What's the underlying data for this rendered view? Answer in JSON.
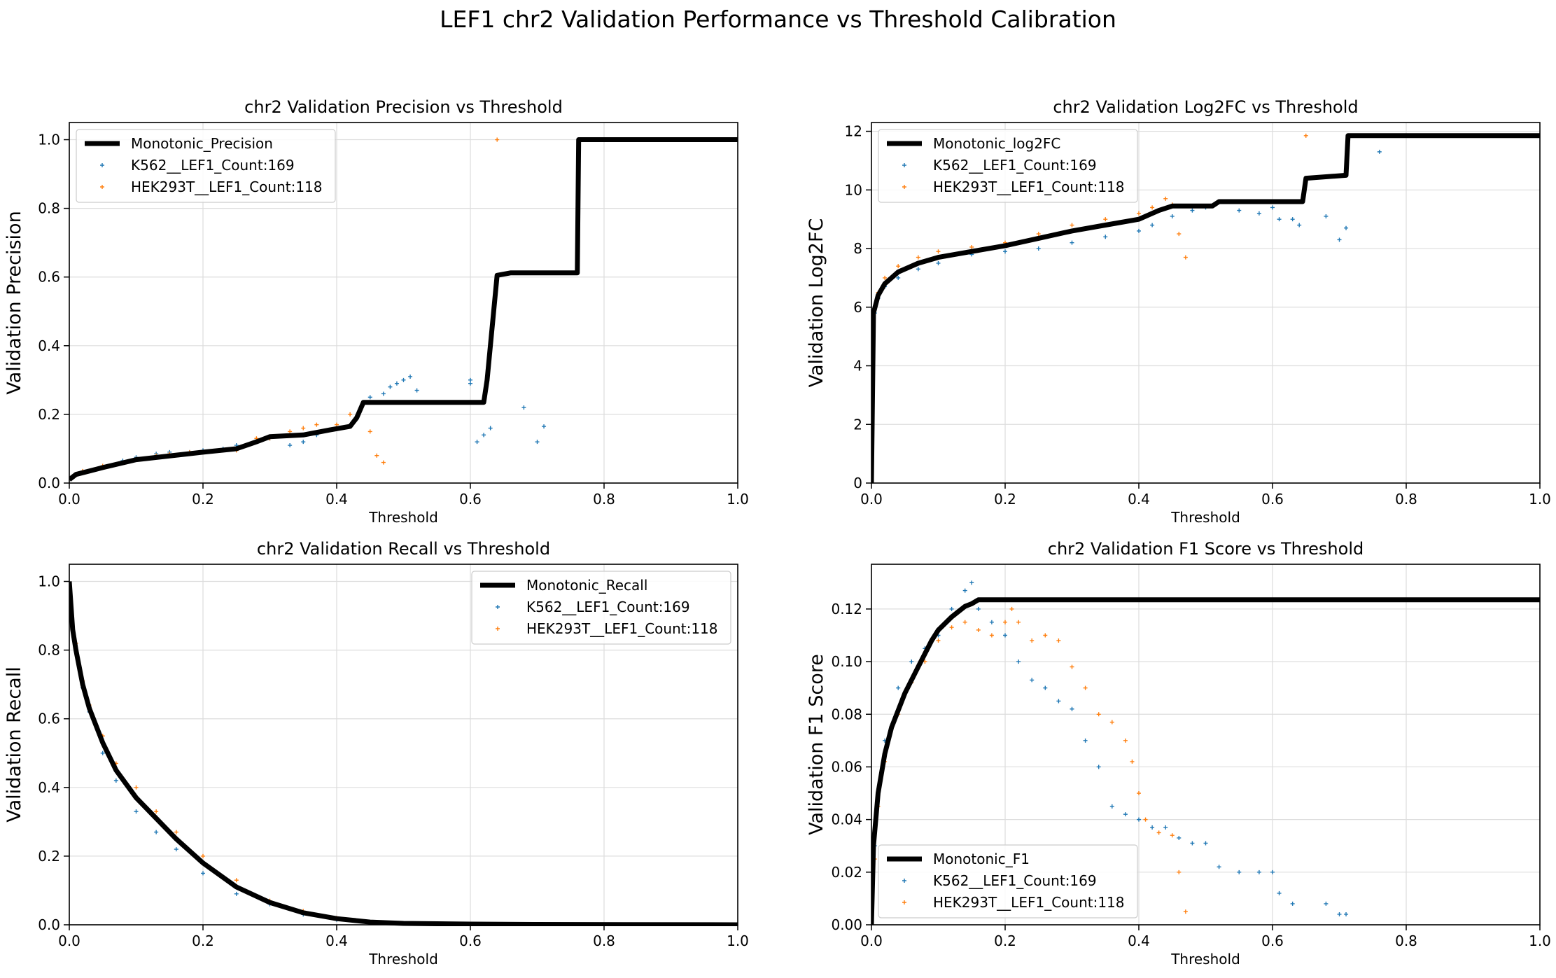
{
  "suptitle": "LEF1 chr2 Validation Performance vs Threshold Calibration",
  "colors": {
    "monotonic": "#000000",
    "k562": "#1f77b4",
    "hek": "#ff7f0e",
    "grid": "#dddddd"
  },
  "chart_data": [
    {
      "type": "line",
      "title": "chr2 Validation Precision vs Threshold",
      "xlabel": "Threshold",
      "ylabel": "Validation Precision",
      "xlim": [
        0,
        1
      ],
      "ylim": [
        0,
        1.05
      ],
      "xticks": [
        0,
        0.2,
        0.4,
        0.6,
        0.8,
        1.0
      ],
      "xtick_labels": [
        "0.0",
        "0.2",
        "0.4",
        "0.6",
        "0.8",
        "1.0"
      ],
      "yticks": [
        0,
        0.2,
        0.4,
        0.6,
        0.8,
        1.0
      ],
      "ytick_labels": [
        "0.0",
        "0.2",
        "0.4",
        "0.6",
        "0.8",
        "1.0"
      ],
      "grid": true,
      "legend": "top-left",
      "series": [
        {
          "name": "Monotonic_Precision",
          "style": "line",
          "x": [
            0,
            0.01,
            0.05,
            0.1,
            0.2,
            0.25,
            0.28,
            0.3,
            0.35,
            0.39,
            0.42,
            0.43,
            0.44,
            0.6,
            0.62,
            0.625,
            0.64,
            0.66,
            0.76,
            0.762,
            1.0
          ],
          "y": [
            0.01,
            0.025,
            0.045,
            0.068,
            0.09,
            0.1,
            0.12,
            0.135,
            0.14,
            0.155,
            0.165,
            0.19,
            0.235,
            0.235,
            0.235,
            0.3,
            0.605,
            0.612,
            0.612,
            1.0,
            1.0
          ]
        },
        {
          "name": "K562__LEF1_Count:169",
          "style": "scatter",
          "x": [
            0.02,
            0.05,
            0.08,
            0.1,
            0.13,
            0.15,
            0.18,
            0.2,
            0.23,
            0.25,
            0.28,
            0.3,
            0.33,
            0.35,
            0.37,
            0.4,
            0.45,
            0.47,
            0.48,
            0.49,
            0.5,
            0.51,
            0.52,
            0.6,
            0.6,
            0.61,
            0.62,
            0.63,
            0.68,
            0.7,
            0.71
          ],
          "y": [
            0.03,
            0.05,
            0.065,
            0.075,
            0.085,
            0.09,
            0.09,
            0.095,
            0.1,
            0.11,
            0.12,
            0.13,
            0.11,
            0.12,
            0.14,
            0.16,
            0.25,
            0.26,
            0.28,
            0.29,
            0.3,
            0.31,
            0.27,
            0.29,
            0.3,
            0.12,
            0.14,
            0.16,
            0.22,
            0.12,
            0.165
          ]
        },
        {
          "name": "HEK293T__LEF1_Count:118",
          "style": "scatter",
          "x": [
            0.02,
            0.05,
            0.08,
            0.1,
            0.13,
            0.15,
            0.18,
            0.2,
            0.23,
            0.25,
            0.28,
            0.3,
            0.33,
            0.35,
            0.37,
            0.4,
            0.42,
            0.45,
            0.46,
            0.47,
            0.64
          ],
          "y": [
            0.035,
            0.05,
            0.06,
            0.07,
            0.08,
            0.085,
            0.09,
            0.09,
            0.095,
            0.095,
            0.13,
            0.13,
            0.15,
            0.16,
            0.17,
            0.17,
            0.2,
            0.15,
            0.08,
            0.06,
            1.0
          ]
        }
      ]
    },
    {
      "type": "line",
      "title": "chr2 Validation Log2FC vs Threshold",
      "xlabel": "Threshold",
      "ylabel": "Validation Log2FC",
      "xlim": [
        0,
        1
      ],
      "ylim": [
        0,
        12.3
      ],
      "xticks": [
        0,
        0.2,
        0.4,
        0.6,
        0.8,
        1.0
      ],
      "xtick_labels": [
        "0.0",
        "0.2",
        "0.4",
        "0.6",
        "0.8",
        "1.0"
      ],
      "yticks": [
        0,
        2,
        4,
        6,
        8,
        10,
        12
      ],
      "ytick_labels": [
        "0",
        "2",
        "4",
        "6",
        "8",
        "10",
        "12"
      ],
      "grid": true,
      "legend": "top-left",
      "series": [
        {
          "name": "Monotonic_log2FC",
          "style": "line",
          "x": [
            0,
            0.003,
            0.01,
            0.02,
            0.04,
            0.07,
            0.1,
            0.15,
            0.2,
            0.25,
            0.3,
            0.35,
            0.4,
            0.43,
            0.45,
            0.51,
            0.52,
            0.645,
            0.65,
            0.71,
            0.713,
            1.0
          ],
          "y": [
            0,
            5.8,
            6.4,
            6.8,
            7.2,
            7.5,
            7.7,
            7.9,
            8.1,
            8.35,
            8.6,
            8.8,
            9.0,
            9.3,
            9.45,
            9.45,
            9.6,
            9.6,
            10.4,
            10.5,
            11.85,
            11.85
          ]
        },
        {
          "name": "K562__LEF1_Count:169",
          "style": "scatter",
          "x": [
            0.005,
            0.01,
            0.02,
            0.04,
            0.07,
            0.1,
            0.15,
            0.2,
            0.25,
            0.3,
            0.35,
            0.4,
            0.42,
            0.45,
            0.48,
            0.5,
            0.55,
            0.58,
            0.6,
            0.61,
            0.63,
            0.64,
            0.68,
            0.7,
            0.71,
            0.76
          ],
          "y": [
            5.8,
            6.3,
            6.7,
            7.0,
            7.3,
            7.5,
            7.8,
            7.9,
            8.0,
            8.2,
            8.4,
            8.6,
            8.8,
            9.1,
            9.3,
            9.4,
            9.3,
            9.2,
            9.4,
            9.0,
            9.0,
            8.8,
            9.1,
            8.3,
            8.7,
            11.3
          ]
        },
        {
          "name": "HEK293T__LEF1_Count:118",
          "style": "scatter",
          "x": [
            0.005,
            0.01,
            0.02,
            0.04,
            0.07,
            0.1,
            0.15,
            0.2,
            0.25,
            0.3,
            0.35,
            0.4,
            0.42,
            0.44,
            0.45,
            0.46,
            0.47,
            0.65
          ],
          "y": [
            6.0,
            6.5,
            7.0,
            7.4,
            7.7,
            7.9,
            8.05,
            8.2,
            8.5,
            8.8,
            9.0,
            9.2,
            9.4,
            9.7,
            9.5,
            8.5,
            7.7,
            11.85
          ]
        }
      ]
    },
    {
      "type": "line",
      "title": "chr2 Validation Recall vs Threshold",
      "xlabel": "Threshold",
      "ylabel": "Validation Recall",
      "xlim": [
        0,
        1
      ],
      "ylim": [
        0,
        1.05
      ],
      "xticks": [
        0,
        0.2,
        0.4,
        0.6,
        0.8,
        1.0
      ],
      "xtick_labels": [
        "0.0",
        "0.2",
        "0.4",
        "0.6",
        "0.8",
        "1.0"
      ],
      "yticks": [
        0,
        0.2,
        0.4,
        0.6,
        0.8,
        1.0
      ],
      "ytick_labels": [
        "0.0",
        "0.2",
        "0.4",
        "0.6",
        "0.8",
        "1.0"
      ],
      "grid": true,
      "legend": "top-right",
      "series": [
        {
          "name": "Monotonic_Recall",
          "style": "line",
          "x": [
            0,
            0.005,
            0.01,
            0.02,
            0.03,
            0.05,
            0.07,
            0.1,
            0.13,
            0.16,
            0.2,
            0.25,
            0.3,
            0.35,
            0.4,
            0.45,
            0.5,
            0.6,
            0.7,
            1.0
          ],
          "y": [
            1.0,
            0.86,
            0.8,
            0.7,
            0.63,
            0.53,
            0.45,
            0.37,
            0.31,
            0.25,
            0.18,
            0.11,
            0.065,
            0.035,
            0.018,
            0.008,
            0.004,
            0.002,
            0.001,
            0.0
          ]
        },
        {
          "name": "K562__LEF1_Count:169",
          "style": "scatter",
          "x": [
            0.01,
            0.02,
            0.03,
            0.05,
            0.07,
            0.1,
            0.13,
            0.16,
            0.2,
            0.25,
            0.3,
            0.35,
            0.4,
            0.45,
            0.5,
            0.6
          ],
          "y": [
            0.8,
            0.69,
            0.62,
            0.5,
            0.42,
            0.33,
            0.27,
            0.22,
            0.15,
            0.09,
            0.06,
            0.03,
            0.015,
            0.008,
            0.004,
            0.002
          ]
        },
        {
          "name": "HEK293T__LEF1_Count:118",
          "style": "scatter",
          "x": [
            0.01,
            0.02,
            0.03,
            0.05,
            0.07,
            0.1,
            0.13,
            0.16,
            0.2,
            0.25,
            0.3,
            0.35,
            0.4,
            0.45,
            0.5
          ],
          "y": [
            0.82,
            0.71,
            0.64,
            0.55,
            0.47,
            0.4,
            0.33,
            0.27,
            0.2,
            0.13,
            0.07,
            0.04,
            0.02,
            0.008,
            0.004
          ]
        }
      ]
    },
    {
      "type": "line",
      "title": "chr2 Validation F1 Score vs Threshold",
      "xlabel": "Threshold",
      "ylabel": "Validation F1 Score",
      "xlim": [
        0,
        1
      ],
      "ylim": [
        0,
        0.137
      ],
      "xticks": [
        0,
        0.2,
        0.4,
        0.6,
        0.8,
        1.0
      ],
      "xtick_labels": [
        "0.0",
        "0.2",
        "0.4",
        "0.6",
        "0.8",
        "1.0"
      ],
      "yticks": [
        0,
        0.02,
        0.04,
        0.06,
        0.08,
        0.1,
        0.12
      ],
      "ytick_labels": [
        "0.00",
        "0.02",
        "0.04",
        "0.06",
        "0.08",
        "0.10",
        "0.12"
      ],
      "grid": true,
      "legend": "bottom-left",
      "series": [
        {
          "name": "Monotonic_F1",
          "style": "line",
          "x": [
            0,
            0.003,
            0.01,
            0.02,
            0.03,
            0.05,
            0.07,
            0.09,
            0.1,
            0.12,
            0.14,
            0.15,
            0.16,
            1.0
          ],
          "y": [
            0.0,
            0.03,
            0.05,
            0.065,
            0.075,
            0.088,
            0.098,
            0.108,
            0.112,
            0.117,
            0.121,
            0.122,
            0.1235,
            0.1235
          ]
        },
        {
          "name": "K562__LEF1_Count:169",
          "style": "scatter",
          "x": [
            0.005,
            0.01,
            0.02,
            0.04,
            0.06,
            0.08,
            0.1,
            0.12,
            0.14,
            0.15,
            0.16,
            0.18,
            0.2,
            0.22,
            0.24,
            0.26,
            0.28,
            0.3,
            0.32,
            0.34,
            0.36,
            0.38,
            0.4,
            0.42,
            0.44,
            0.46,
            0.48,
            0.5,
            0.52,
            0.55,
            0.58,
            0.6,
            0.61,
            0.63,
            0.68,
            0.7,
            0.71
          ],
          "y": [
            0.03,
            0.05,
            0.07,
            0.09,
            0.1,
            0.105,
            0.11,
            0.12,
            0.127,
            0.13,
            0.12,
            0.115,
            0.11,
            0.1,
            0.093,
            0.09,
            0.085,
            0.082,
            0.07,
            0.06,
            0.045,
            0.042,
            0.04,
            0.037,
            0.037,
            0.033,
            0.031,
            0.031,
            0.022,
            0.02,
            0.02,
            0.02,
            0.012,
            0.008,
            0.008,
            0.004,
            0.004
          ]
        },
        {
          "name": "HEK293T__LEF1_Count:118",
          "style": "scatter",
          "x": [
            0.005,
            0.01,
            0.02,
            0.04,
            0.06,
            0.08,
            0.1,
            0.12,
            0.14,
            0.16,
            0.18,
            0.2,
            0.21,
            0.22,
            0.24,
            0.26,
            0.28,
            0.3,
            0.32,
            0.34,
            0.36,
            0.38,
            0.39,
            0.4,
            0.41,
            0.43,
            0.45,
            0.46,
            0.47
          ],
          "y": [
            0.025,
            0.045,
            0.062,
            0.08,
            0.092,
            0.1,
            0.108,
            0.113,
            0.115,
            0.112,
            0.11,
            0.115,
            0.12,
            0.115,
            0.108,
            0.11,
            0.108,
            0.098,
            0.09,
            0.08,
            0.077,
            0.07,
            0.062,
            0.05,
            0.04,
            0.035,
            0.034,
            0.02,
            0.005
          ]
        }
      ]
    }
  ]
}
